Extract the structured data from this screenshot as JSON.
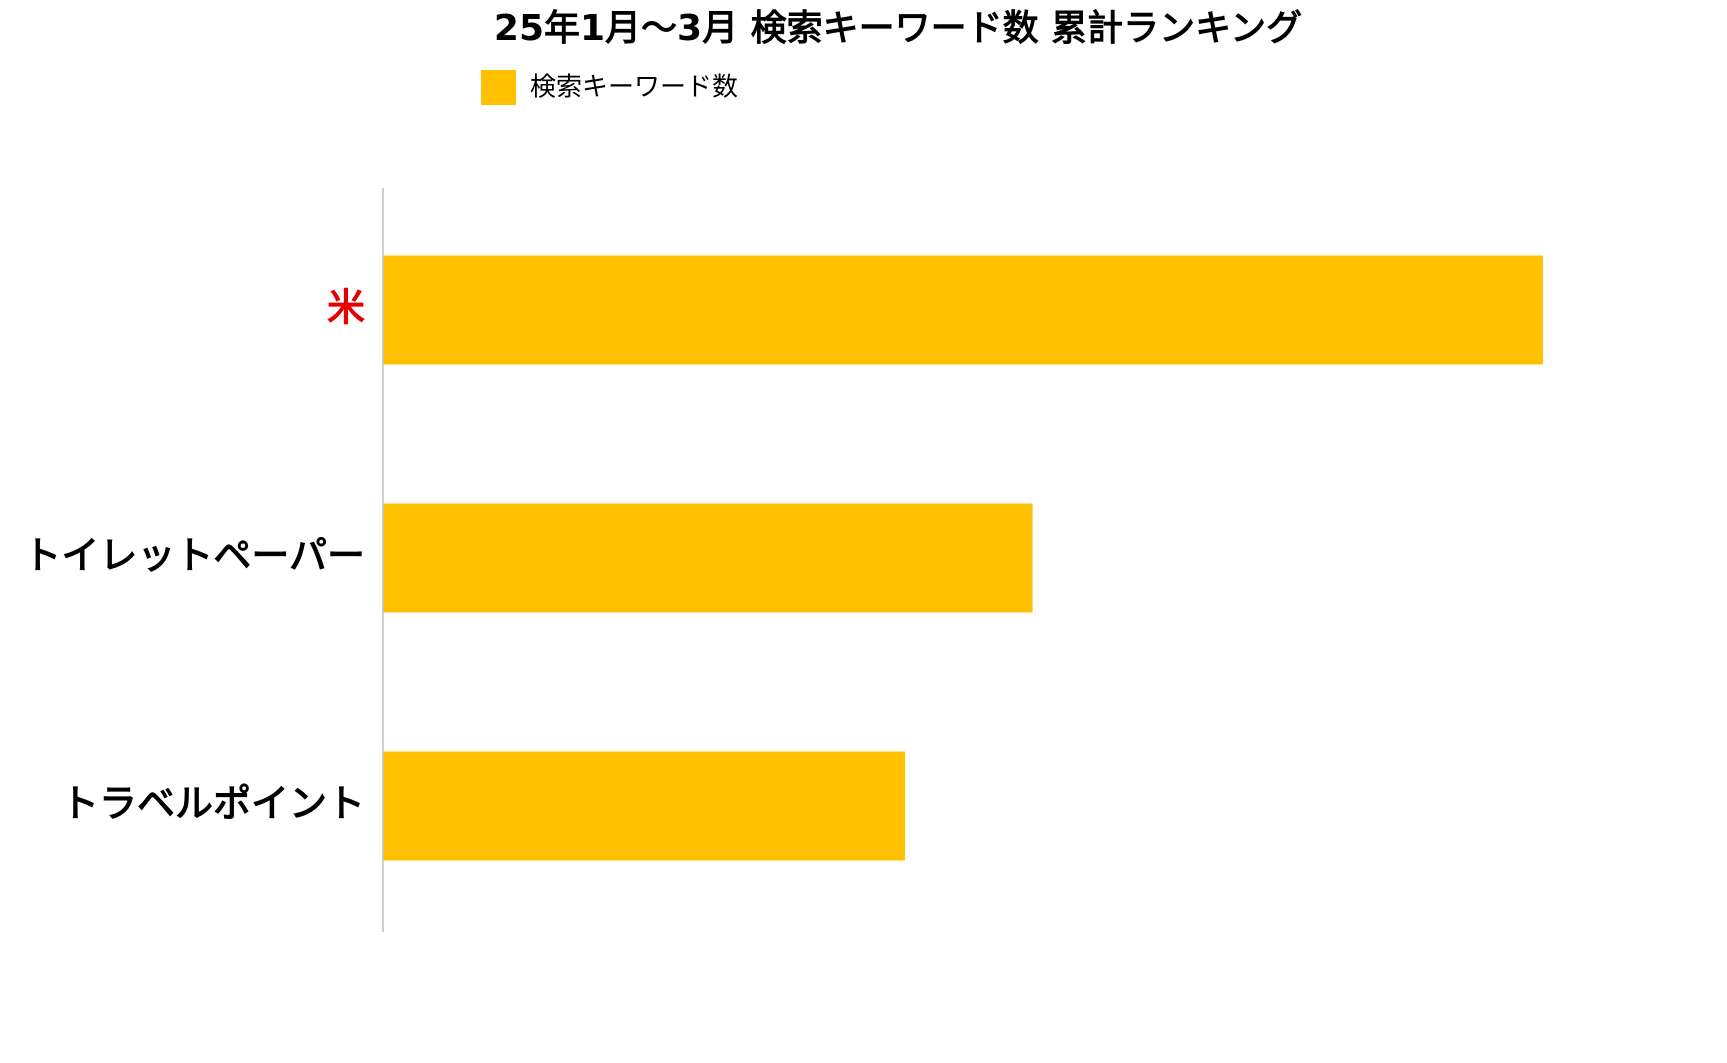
{
  "chart_data": {
    "type": "bar",
    "orientation": "horizontal",
    "title": "25年1月～3月 検索キーワード数 累計ランキング",
    "categories": [
      "米",
      "トイレットペーパー",
      "トラベルポイント"
    ],
    "label_colors": [
      "#e60000",
      "#000000",
      "#000000"
    ],
    "series": [
      {
        "name": "検索キーワード数",
        "color": "#ffc000",
        "values": [
          100,
          56,
          45
        ]
      }
    ],
    "xlim": [
      0,
      100
    ]
  }
}
